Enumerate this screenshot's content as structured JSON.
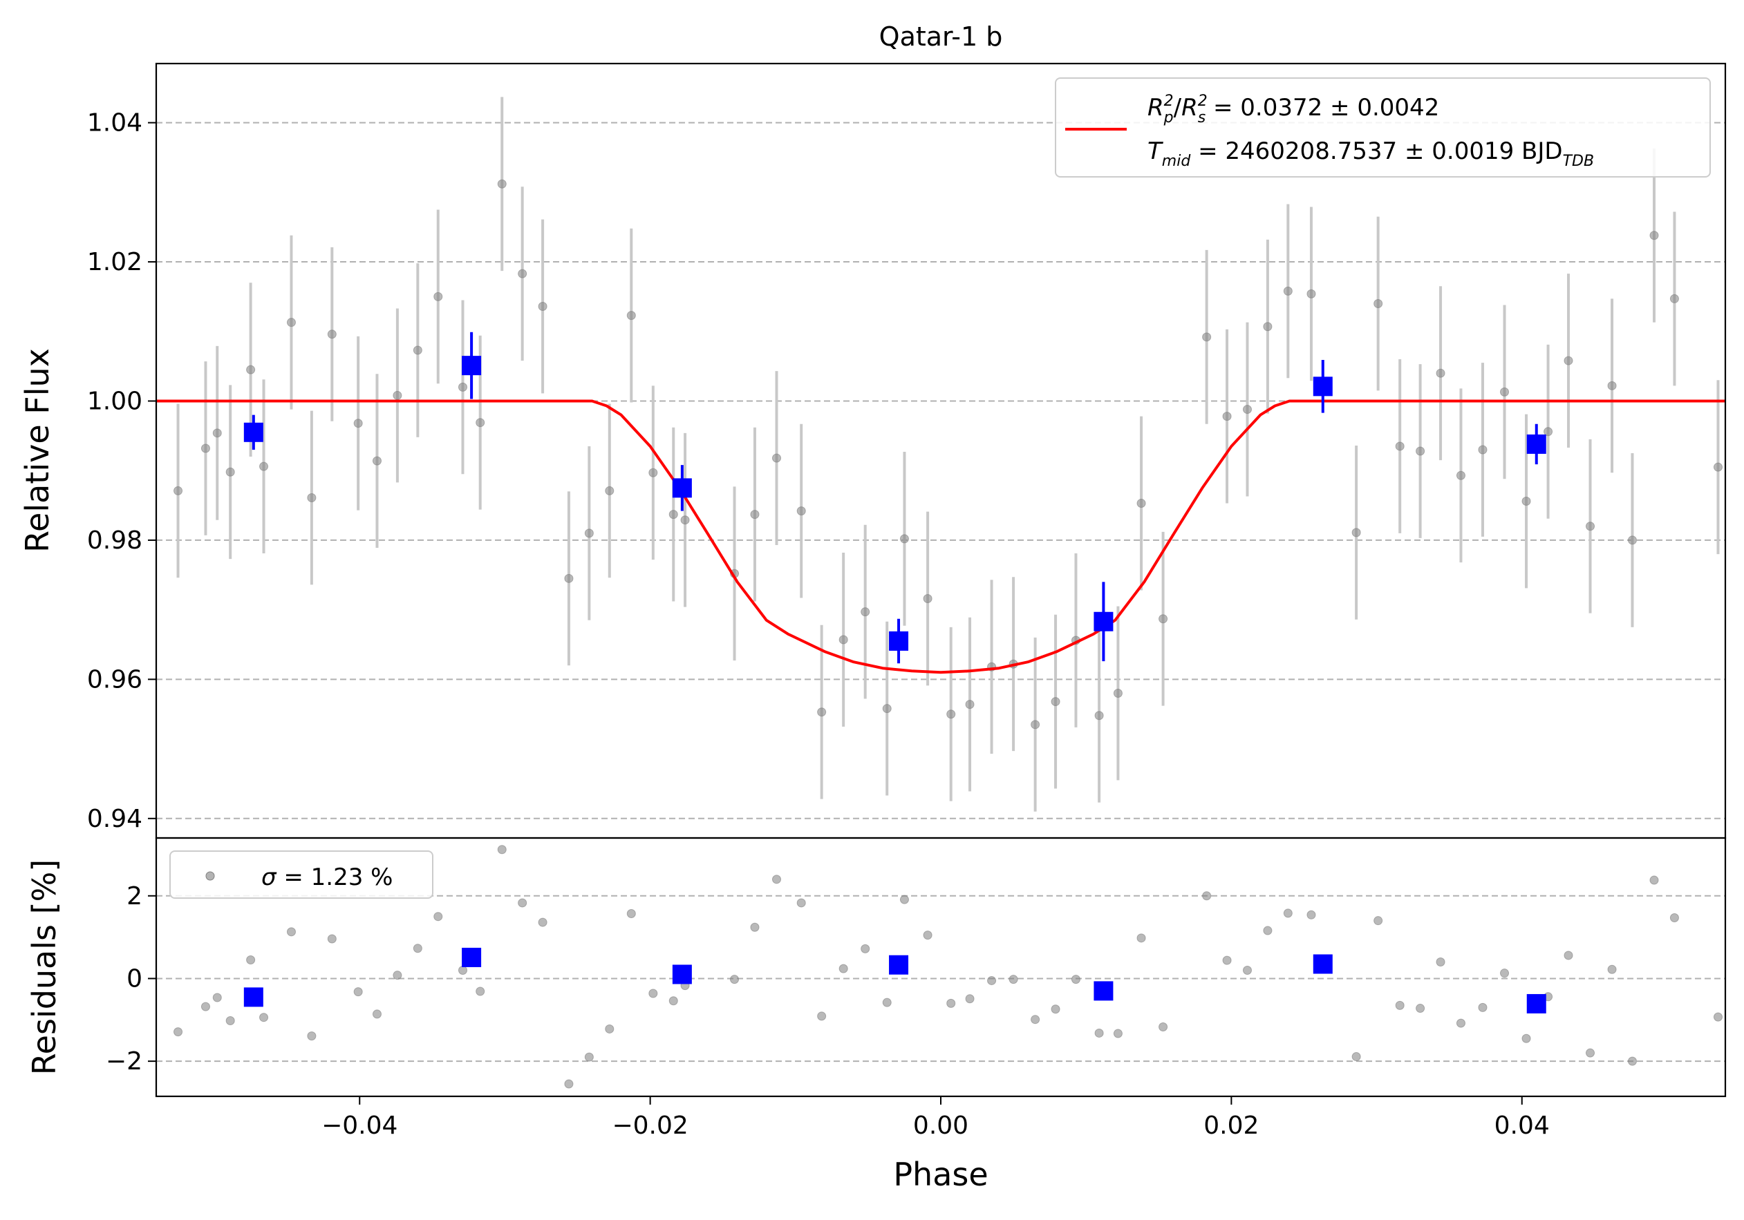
{
  "chart_data": {
    "type": "scatter",
    "title": "Qatar-1 b",
    "xlabel": "Phase",
    "xlim": [
      -0.054,
      0.054
    ],
    "x_ticks": [
      -0.04,
      -0.02,
      0.0,
      0.02,
      0.04
    ],
    "x_tick_labels": [
      "−0.04",
      "−0.02",
      "0.00",
      "0.02",
      "0.04"
    ],
    "colors": {
      "raw": "#808080",
      "errorbar": "#c8c8c8",
      "binned": "#0000ff",
      "model": "#ff0000",
      "grid": "#b0b0b0"
    },
    "main_panel": {
      "ylabel": "Relative Flux",
      "ylim": [
        0.9372,
        1.0485
      ],
      "y_ticks": [
        0.94,
        0.96,
        0.98,
        1.0,
        1.02,
        1.04
      ],
      "y_tick_labels": [
        "0.94",
        "0.96",
        "0.98",
        "1.00",
        "1.02",
        "1.04"
      ],
      "grid": "horizontal dashed",
      "legend": {
        "location": "upper right",
        "line1": {
          "a": "R",
          "a_sup": "2",
          "a_sub": "p",
          "b": "R",
          "b_sup": "2",
          "b_sub": "s",
          "rest": " = 0.0372 ± 0.0042"
        },
        "line2": {
          "a": "T",
          "a_sub": "mid",
          "rest": " = 2460208.7537 ± 0.0019 BJD",
          "rest_sub": "TDB"
        }
      },
      "model_curve": {
        "name": "transit model",
        "depth": 0.0372,
        "min_flux": 0.961,
        "x": [
          -0.054,
          -0.024,
          -0.023,
          -0.022,
          -0.02,
          -0.018,
          -0.016,
          -0.014,
          -0.012,
          -0.0105,
          -0.008,
          -0.006,
          -0.004,
          -0.002,
          0.0,
          0.002,
          0.004,
          0.006,
          0.008,
          0.0105,
          0.012,
          0.014,
          0.016,
          0.018,
          0.02,
          0.022,
          0.023,
          0.024,
          0.054
        ],
        "y": [
          1.0,
          1.0,
          0.9993,
          0.998,
          0.9935,
          0.9875,
          0.9808,
          0.974,
          0.9685,
          0.9665,
          0.964,
          0.9625,
          0.9616,
          0.9612,
          0.961,
          0.9612,
          0.9616,
          0.9625,
          0.964,
          0.9665,
          0.9685,
          0.974,
          0.9808,
          0.9875,
          0.9935,
          0.998,
          0.9993,
          1.0,
          1.0
        ]
      },
      "raw_points": {
        "x": [
          -0.0543,
          -0.0525,
          -0.0506,
          -0.0498,
          -0.0489,
          -0.0475,
          -0.0466,
          -0.0447,
          -0.0433,
          -0.0419,
          -0.0401,
          -0.0388,
          -0.0374,
          -0.036,
          -0.0346,
          -0.0329,
          -0.0317,
          -0.0302,
          -0.0288,
          -0.0274,
          -0.0256,
          -0.0242,
          -0.0228,
          -0.0213,
          -0.0198,
          -0.0184,
          -0.0176,
          -0.0142,
          -0.0128,
          -0.0113,
          -0.0096,
          -0.0082,
          -0.0067,
          -0.0052,
          -0.0037,
          -0.0025,
          -0.0009,
          0.0007,
          0.002,
          0.0035,
          0.005,
          0.0065,
          0.0079,
          0.0093,
          0.0109,
          0.0122,
          0.0138,
          0.0153,
          0.0183,
          0.0197,
          0.0211,
          0.0225,
          0.0239,
          0.0255,
          0.0286,
          0.0301,
          0.0316,
          0.033,
          0.0344,
          0.0358,
          0.0373,
          0.0388,
          0.0403,
          0.0418,
          0.0432,
          0.0447,
          0.0462,
          0.0476,
          0.0491,
          0.0505,
          0.0535
        ],
        "y": [
          0.9866,
          0.9871,
          0.9932,
          0.9954,
          0.9898,
          1.0045,
          0.9906,
          1.0113,
          0.9861,
          1.0096,
          0.9968,
          0.9914,
          1.0008,
          1.0073,
          1.015,
          1.002,
          0.9969,
          1.0312,
          1.0183,
          1.0136,
          0.9745,
          0.981,
          0.9871,
          1.0123,
          0.9897,
          0.9837,
          0.9829,
          0.9752,
          0.9837,
          0.9918,
          0.9842,
          0.9553,
          0.9657,
          0.9697,
          0.9558,
          0.9802,
          0.9716,
          0.955,
          0.9564,
          0.9618,
          0.9622,
          0.9535,
          0.9568,
          0.9656,
          0.9548,
          0.958,
          0.9853,
          0.9687,
          1.0092,
          0.9978,
          0.9988,
          1.0107,
          1.0158,
          1.0154,
          0.9811,
          1.014,
          0.9935,
          0.9928,
          1.004,
          0.9893,
          0.993,
          1.0013,
          0.9856,
          0.9956,
          1.0058,
          0.982,
          1.0022,
          0.98,
          1.0238,
          1.0147,
          0.9905
        ],
        "yerr": 0.0125
      },
      "binned_points": {
        "x": [
          -0.0473,
          -0.0323,
          -0.0178,
          -0.0029,
          0.0112,
          0.0263,
          0.041
        ],
        "y": [
          0.9955,
          1.0051,
          0.9875,
          0.9655,
          0.9683,
          1.0021,
          0.9938
        ],
        "yerr": [
          0.0025,
          0.0048,
          0.0033,
          0.0032,
          0.0057,
          0.0038,
          0.0029
        ]
      }
    },
    "residual_panel": {
      "ylabel": "Residuals [%]",
      "ylim": [
        -2.85,
        3.4
      ],
      "y_ticks": [
        -2,
        0,
        2
      ],
      "y_tick_labels": [
        "−2",
        "0",
        "2"
      ],
      "grid": "horizontal dashed",
      "legend": {
        "location": "upper left",
        "symbol": "σ",
        "text": " = 1.23 %"
      },
      "raw_residuals": [
        -1.34,
        -1.29,
        -0.68,
        -0.46,
        -1.02,
        0.45,
        -0.94,
        1.13,
        -1.39,
        0.96,
        -0.32,
        -0.86,
        0.08,
        0.73,
        1.5,
        0.2,
        -0.31,
        3.12,
        1.83,
        1.36,
        -2.55,
        -1.9,
        -1.22,
        1.57,
        -0.36,
        -0.54,
        -0.17,
        -0.02,
        1.24,
        2.4,
        1.83,
        -0.91,
        0.24,
        0.72,
        -0.58,
        1.91,
        1.05,
        -0.6,
        -0.49,
        -0.05,
        -0.02,
        -0.99,
        -0.74,
        -0.02,
        -1.32,
        -1.33,
        0.98,
        -1.17,
        2.0,
        0.44,
        0.2,
        1.16,
        1.58,
        1.54,
        -1.89,
        1.4,
        -0.65,
        -0.72,
        0.4,
        -1.08,
        -0.7,
        0.13,
        -1.45,
        -0.44,
        0.56,
        -1.8,
        0.22,
        -2.0,
        2.38,
        1.47,
        -0.93
      ],
      "binned_residuals": [
        -0.45,
        0.51,
        0.1,
        0.33,
        -0.3,
        0.35,
        -0.61
      ]
    }
  }
}
